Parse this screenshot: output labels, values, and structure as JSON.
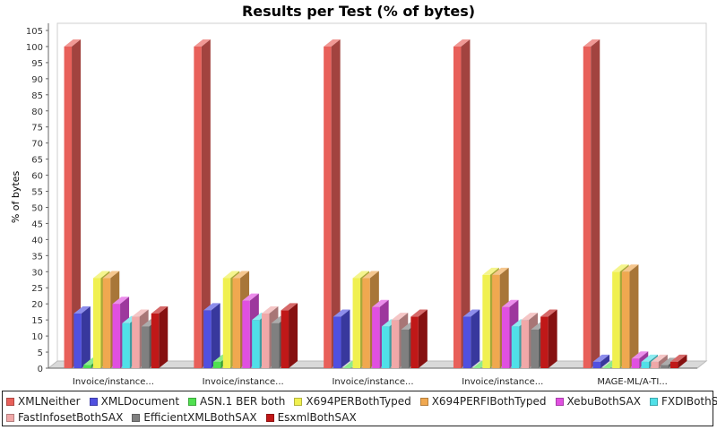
{
  "chart_data": {
    "type": "bar",
    "title": "Results per Test (% of bytes)",
    "xlabel": "",
    "ylabel": "% of bytes",
    "ylim": [
      0,
      105
    ],
    "yticks": [
      0,
      5,
      10,
      15,
      20,
      25,
      30,
      35,
      40,
      45,
      50,
      55,
      60,
      65,
      70,
      75,
      80,
      85,
      90,
      95,
      100,
      105
    ],
    "grid": false,
    "legend_position": "bottom",
    "categories": [
      "Invoice/instance...",
      "Invoice/instance...",
      "Invoice/instance...",
      "Invoice/instance...",
      "MAGE-ML/A-TI..."
    ],
    "series": [
      {
        "name": "XMLNeither",
        "color": "#e8605a",
        "values": [
          100,
          100,
          100,
          100,
          100
        ]
      },
      {
        "name": "XMLDocument",
        "color": "#5050e0",
        "values": [
          17,
          18,
          16,
          16,
          2
        ]
      },
      {
        "name": "ASN.1 BER both",
        "color": "#50e050",
        "values": [
          1,
          2,
          0,
          0,
          0
        ]
      },
      {
        "name": "X694PERBothTyped",
        "color": "#f0f050",
        "values": [
          28,
          28,
          28,
          29,
          30
        ]
      },
      {
        "name": "X694PERFIBothTyped",
        "color": "#f0a850",
        "values": [
          28,
          28,
          28,
          29,
          30
        ]
      },
      {
        "name": "XebuBothSAX",
        "color": "#e050e0",
        "values": [
          20,
          21,
          19,
          19,
          3
        ]
      },
      {
        "name": "FXDIBothSAX",
        "color": "#50e0e8",
        "values": [
          14,
          15,
          13,
          13,
          2
        ]
      },
      {
        "name": "FastInfosetBothSAX",
        "color": "#f0a8a8",
        "values": [
          16,
          17,
          15,
          15,
          2
        ]
      },
      {
        "name": "EfficientXMLBothSAX",
        "color": "#808080",
        "values": [
          13,
          14,
          12,
          12,
          1
        ]
      },
      {
        "name": "EsxmlBothSAX",
        "color": "#c01818",
        "values": [
          17,
          18,
          16,
          16,
          2
        ]
      }
    ]
  }
}
